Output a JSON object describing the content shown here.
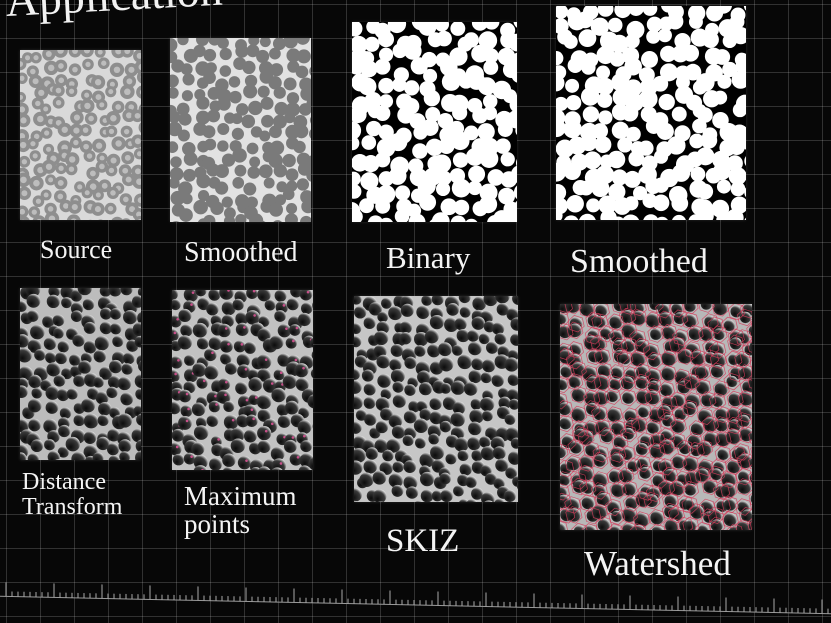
{
  "slide": {
    "title": "Application",
    "panels": [
      {
        "caption": "Source"
      },
      {
        "caption": "Smoothed"
      },
      {
        "caption": "Binary"
      },
      {
        "caption": "Smoothed"
      },
      {
        "caption_line1": "Distance",
        "caption_line2": "Transform"
      },
      {
        "caption_line1": "Maximum",
        "caption_line2": "points"
      },
      {
        "caption": "SKIZ"
      },
      {
        "caption": "Watershed"
      }
    ]
  },
  "colors": {
    "background": "#070707",
    "grid_line": "#c8c8c8",
    "caption_text": "#f4f4f4",
    "watershed_lines": "#d23c5a"
  }
}
